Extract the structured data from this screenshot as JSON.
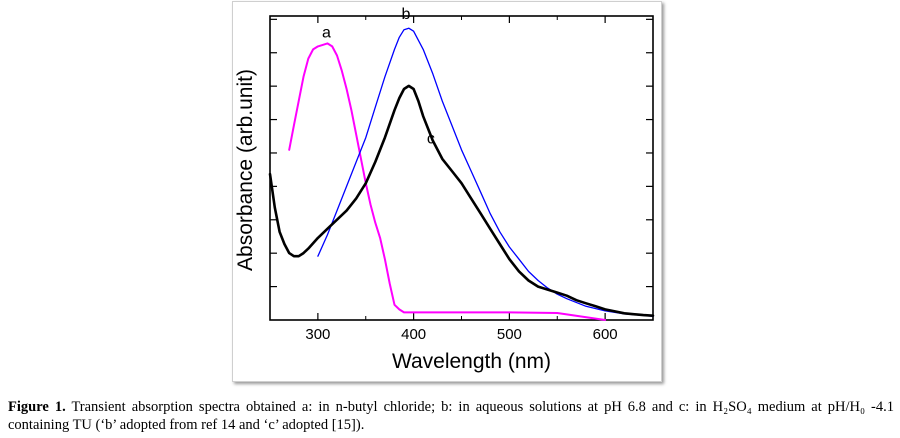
{
  "chart_data": {
    "type": "line",
    "xlabel": "Wavelength (nm)",
    "ylabel": "Absorbance (arb.unit)",
    "xlim": [
      250,
      650
    ],
    "xticks": [
      300,
      400,
      500,
      600
    ],
    "y_tick_labels_shown": false,
    "y_tick_count": 9,
    "grid": false,
    "series": [
      {
        "name": "a",
        "color": "#ff00ff",
        "x": [
          270,
          275,
          280,
          285,
          290,
          295,
          300,
          305,
          310,
          315,
          320,
          325,
          330,
          335,
          340,
          345,
          350,
          355,
          360,
          365,
          370,
          375,
          380,
          385,
          390,
          400,
          450,
          500,
          550,
          600
        ],
        "y": [
          0.56,
          0.64,
          0.72,
          0.8,
          0.86,
          0.89,
          0.9,
          0.905,
          0.91,
          0.9,
          0.87,
          0.82,
          0.76,
          0.69,
          0.61,
          0.53,
          0.45,
          0.38,
          0.32,
          0.27,
          0.2,
          0.12,
          0.05,
          0.035,
          0.025,
          0.025,
          0.025,
          0.025,
          0.023,
          0.0
        ]
      },
      {
        "name": "b",
        "color": "#0000ff",
        "x": [
          300,
          310,
          320,
          330,
          340,
          350,
          360,
          370,
          380,
          385,
          390,
          395,
          400,
          410,
          420,
          430,
          440,
          450,
          460,
          470,
          480,
          490,
          500,
          510,
          520,
          530,
          540,
          550,
          560,
          580,
          600,
          620,
          640,
          650
        ],
        "y": [
          0.21,
          0.28,
          0.36,
          0.44,
          0.52,
          0.6,
          0.7,
          0.8,
          0.89,
          0.93,
          0.955,
          0.96,
          0.95,
          0.89,
          0.81,
          0.72,
          0.64,
          0.56,
          0.49,
          0.42,
          0.35,
          0.29,
          0.24,
          0.2,
          0.16,
          0.13,
          0.105,
          0.085,
          0.07,
          0.045,
          0.03,
          0.02,
          0.015,
          0.012
        ]
      },
      {
        "name": "c",
        "color": "#000000",
        "x": [
          250,
          255,
          260,
          265,
          270,
          275,
          280,
          285,
          290,
          300,
          310,
          320,
          330,
          340,
          350,
          360,
          370,
          380,
          385,
          390,
          395,
          400,
          405,
          410,
          420,
          430,
          440,
          450,
          460,
          470,
          480,
          490,
          500,
          510,
          520,
          530,
          540,
          550,
          560,
          570,
          580,
          590,
          600,
          620,
          640,
          650
        ],
        "y": [
          0.48,
          0.37,
          0.29,
          0.25,
          0.22,
          0.21,
          0.21,
          0.22,
          0.235,
          0.27,
          0.3,
          0.33,
          0.36,
          0.4,
          0.45,
          0.52,
          0.6,
          0.69,
          0.73,
          0.76,
          0.77,
          0.76,
          0.72,
          0.67,
          0.59,
          0.53,
          0.49,
          0.45,
          0.4,
          0.35,
          0.3,
          0.25,
          0.2,
          0.16,
          0.13,
          0.11,
          0.1,
          0.09,
          0.08,
          0.065,
          0.055,
          0.045,
          0.035,
          0.022,
          0.016,
          0.014
        ]
      }
    ]
  },
  "caption": {
    "label": "Figure 1.",
    "text": " Transient absorption spectra obtained a: in n-butyl chloride; b: in aqueous solutions at pH 6.8 and c: in H₂SO₄ medium at pH/H₀ -4.1 containing TU (‘b’ adopted from ref 14 and ‘c’ adopted [15])."
  }
}
